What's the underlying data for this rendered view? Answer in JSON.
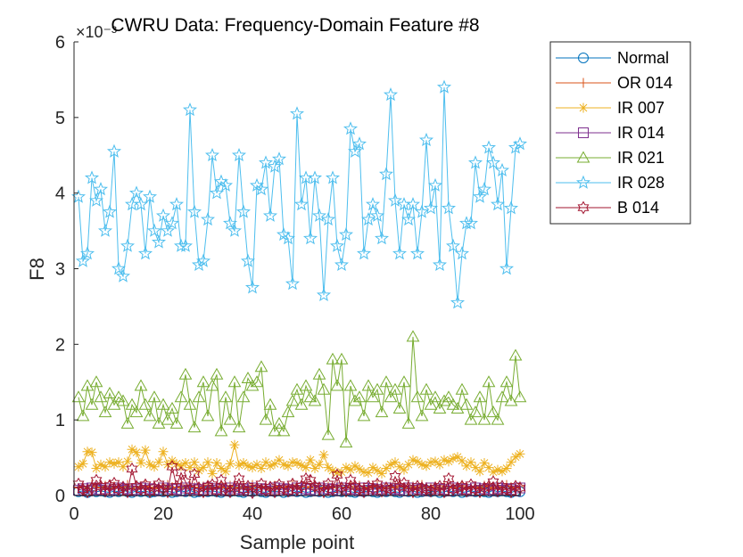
{
  "chart_data": {
    "type": "line",
    "title": "CWRU Data: Frequency-Domain Feature #8",
    "xlabel": "Sample point",
    "ylabel": "F8",
    "y_exponent_label": "×10⁻³",
    "xlim": [
      0,
      100
    ],
    "ylim": [
      0,
      6
    ],
    "x_ticks": [
      "0",
      "20",
      "40",
      "60",
      "80",
      "100"
    ],
    "y_ticks": [
      "0",
      "1",
      "2",
      "3",
      "4",
      "5",
      "6"
    ],
    "grid": false,
    "legend_position": "outside-top-right",
    "x": [
      1,
      2,
      3,
      4,
      5,
      6,
      7,
      8,
      9,
      10,
      11,
      12,
      13,
      14,
      15,
      16,
      17,
      18,
      19,
      20,
      21,
      22,
      23,
      24,
      25,
      26,
      27,
      28,
      29,
      30,
      31,
      32,
      33,
      34,
      35,
      36,
      37,
      38,
      39,
      40,
      41,
      42,
      43,
      44,
      45,
      46,
      47,
      48,
      49,
      50,
      51,
      52,
      53,
      54,
      55,
      56,
      57,
      58,
      59,
      60,
      61,
      62,
      63,
      64,
      65,
      66,
      67,
      68,
      69,
      70,
      71,
      72,
      73,
      74,
      75,
      76,
      77,
      78,
      79,
      80,
      81,
      82,
      83,
      84,
      85,
      86,
      87,
      88,
      89,
      90,
      91,
      92,
      93,
      94,
      95,
      96,
      97,
      98,
      99,
      100
    ],
    "series": [
      {
        "name": "Normal",
        "color": "#0072BD",
        "marker": "circle",
        "values": [
          0.05,
          0.06,
          0.04,
          0.07,
          0.05,
          0.06,
          0.05,
          0.04,
          0.06,
          0.05,
          0.07,
          0.05,
          0.04,
          0.06,
          0.05,
          0.06,
          0.04,
          0.05,
          0.07,
          0.05,
          0.06,
          0.04,
          0.05,
          0.06,
          0.05,
          0.07,
          0.04,
          0.05,
          0.06,
          0.05,
          0.06,
          0.05,
          0.04,
          0.07,
          0.05,
          0.06,
          0.05,
          0.04,
          0.06,
          0.05,
          0.07,
          0.05,
          0.04,
          0.06,
          0.05,
          0.06,
          0.04,
          0.05,
          0.07,
          0.05,
          0.06,
          0.04,
          0.05,
          0.06,
          0.05,
          0.07,
          0.04,
          0.05,
          0.06,
          0.05,
          0.06,
          0.05,
          0.04,
          0.07,
          0.05,
          0.06,
          0.05,
          0.04,
          0.06,
          0.05,
          0.07,
          0.05,
          0.04,
          0.06,
          0.05,
          0.06,
          0.04,
          0.05,
          0.07,
          0.05,
          0.06,
          0.04,
          0.05,
          0.06,
          0.05,
          0.07,
          0.04,
          0.05,
          0.06,
          0.05,
          0.06,
          0.05,
          0.04,
          0.07,
          0.05,
          0.06,
          0.05,
          0.04,
          0.06,
          0.05
        ]
      },
      {
        "name": "OR 014",
        "color": "#D95319",
        "marker": "plus",
        "values": [
          0.1,
          0.12,
          0.09,
          0.14,
          0.11,
          0.1,
          0.13,
          0.08,
          0.12,
          0.1,
          0.11,
          0.14,
          0.09,
          0.12,
          0.1,
          0.13,
          0.11,
          0.09,
          0.12,
          0.1,
          0.14,
          0.11,
          0.1,
          0.12,
          0.09,
          0.13,
          0.11,
          0.1,
          0.12,
          0.14,
          0.09,
          0.11,
          0.12,
          0.1,
          0.13,
          0.11,
          0.09,
          0.12,
          0.1,
          0.14,
          0.11,
          0.1,
          0.12,
          0.09,
          0.13,
          0.11,
          0.1,
          0.12,
          0.14,
          0.09,
          0.11,
          0.12,
          0.1,
          0.13,
          0.11,
          0.09,
          0.12,
          0.1,
          0.14,
          0.11,
          0.1,
          0.12,
          0.09,
          0.13,
          0.11,
          0.1,
          0.12,
          0.14,
          0.09,
          0.11,
          0.12,
          0.1,
          0.13,
          0.11,
          0.09,
          0.12,
          0.1,
          0.14,
          0.11,
          0.1,
          0.12,
          0.09,
          0.13,
          0.11,
          0.1,
          0.12,
          0.14,
          0.09,
          0.11,
          0.12,
          0.1,
          0.13,
          0.11,
          0.09,
          0.12,
          0.1,
          0.14,
          0.11,
          0.1,
          0.12
        ]
      },
      {
        "name": "IR 007",
        "color": "#EDB120",
        "marker": "asterisk",
        "values": [
          0.38,
          0.42,
          0.58,
          0.57,
          0.36,
          0.41,
          0.38,
          0.44,
          0.42,
          0.44,
          0.38,
          0.45,
          0.61,
          0.57,
          0.43,
          0.6,
          0.41,
          0.38,
          0.44,
          0.58,
          0.41,
          0.46,
          0.42,
          0.39,
          0.43,
          0.37,
          0.44,
          0.33,
          0.37,
          0.44,
          0.29,
          0.43,
          0.36,
          0.32,
          0.42,
          0.67,
          0.4,
          0.43,
          0.39,
          0.37,
          0.41,
          0.36,
          0.44,
          0.39,
          0.42,
          0.47,
          0.41,
          0.39,
          0.44,
          0.43,
          0.4,
          0.37,
          0.47,
          0.36,
          0.41,
          0.54,
          0.37,
          0.33,
          0.3,
          0.31,
          0.37,
          0.34,
          0.39,
          0.35,
          0.31,
          0.3,
          0.37,
          0.33,
          0.29,
          0.36,
          0.41,
          0.44,
          0.38,
          0.34,
          0.41,
          0.47,
          0.45,
          0.41,
          0.39,
          0.44,
          0.45,
          0.41,
          0.47,
          0.45,
          0.49,
          0.51,
          0.46,
          0.39,
          0.44,
          0.37,
          0.32,
          0.43,
          0.37,
          0.31,
          0.34,
          0.32,
          0.36,
          0.44,
          0.51,
          0.55
        ]
      },
      {
        "name": "IR 014",
        "color": "#7E2F8E",
        "marker": "square",
        "values": [
          0.07,
          0.09,
          0.06,
          0.1,
          0.08,
          0.07,
          0.09,
          0.06,
          0.08,
          0.1,
          0.07,
          0.09,
          0.06,
          0.08,
          0.1,
          0.07,
          0.09,
          0.08,
          0.06,
          0.1,
          0.07,
          0.09,
          0.08,
          0.06,
          0.1,
          0.07,
          0.09,
          0.08,
          0.06,
          0.1,
          0.07,
          0.09,
          0.08,
          0.06,
          0.1,
          0.07,
          0.09,
          0.08,
          0.06,
          0.1,
          0.07,
          0.09,
          0.08,
          0.06,
          0.1,
          0.07,
          0.09,
          0.08,
          0.06,
          0.1,
          0.07,
          0.09,
          0.08,
          0.06,
          0.1,
          0.07,
          0.09,
          0.08,
          0.06,
          0.1,
          0.07,
          0.09,
          0.08,
          0.06,
          0.1,
          0.07,
          0.09,
          0.08,
          0.06,
          0.1,
          0.07,
          0.09,
          0.08,
          0.06,
          0.1,
          0.07,
          0.09,
          0.08,
          0.06,
          0.1,
          0.07,
          0.09,
          0.08,
          0.06,
          0.1,
          0.07,
          0.09,
          0.08,
          0.06,
          0.1,
          0.07,
          0.09,
          0.08,
          0.06,
          0.1,
          0.07,
          0.09,
          0.08,
          0.06,
          0.1
        ]
      },
      {
        "name": "IR 021",
        "color": "#77AC30",
        "marker": "triangle",
        "values": [
          1.3,
          1.05,
          1.45,
          1.2,
          1.5,
          1.3,
          1.1,
          1.35,
          1.2,
          1.3,
          1.25,
          0.95,
          1.2,
          1.1,
          1.45,
          1.2,
          1.05,
          1.3,
          0.95,
          1.2,
          1.0,
          1.15,
          0.95,
          1.3,
          1.6,
          1.2,
          0.9,
          1.3,
          1.5,
          1.05,
          1.45,
          1.6,
          0.85,
          1.3,
          1.0,
          1.5,
          0.9,
          1.3,
          1.55,
          1.45,
          1.5,
          1.7,
          1.0,
          1.2,
          0.85,
          0.95,
          0.85,
          1.1,
          1.25,
          1.4,
          1.2,
          1.45,
          1.3,
          1.25,
          1.6,
          1.4,
          0.8,
          1.8,
          1.45,
          1.8,
          0.7,
          1.45,
          1.25,
          1.3,
          1.05,
          1.45,
          1.3,
          1.4,
          1.1,
          1.5,
          1.3,
          1.4,
          1.15,
          1.5,
          0.95,
          2.1,
          1.3,
          1.05,
          1.4,
          1.2,
          1.3,
          1.15,
          1.25,
          1.3,
          1.2,
          1.15,
          1.4,
          1.2,
          1.0,
          1.1,
          1.3,
          1.0,
          1.5,
          1.1,
          1.0,
          1.3,
          1.5,
          1.25,
          1.85,
          1.3
        ]
      },
      {
        "name": "IR 028",
        "color": "#4DBEEE",
        "marker": "pentagram",
        "values": [
          3.95,
          3.1,
          3.2,
          4.2,
          3.9,
          4.05,
          3.5,
          3.75,
          4.55,
          3.0,
          2.9,
          3.3,
          3.85,
          4.0,
          3.85,
          3.2,
          3.95,
          3.5,
          3.35,
          3.7,
          3.5,
          3.6,
          3.85,
          3.3,
          3.3,
          5.1,
          3.75,
          3.05,
          3.1,
          3.65,
          4.5,
          4.0,
          4.15,
          4.1,
          3.6,
          3.5,
          4.5,
          3.75,
          3.1,
          2.75,
          4.1,
          4.05,
          4.4,
          3.7,
          4.35,
          4.45,
          3.45,
          3.4,
          2.8,
          5.05,
          3.85,
          4.2,
          3.4,
          4.2,
          3.7,
          2.65,
          3.65,
          4.2,
          3.3,
          3.05,
          3.45,
          4.85,
          4.55,
          4.65,
          3.2,
          3.65,
          3.85,
          3.7,
          3.4,
          4.25,
          5.3,
          3.9,
          3.2,
          3.85,
          3.65,
          3.85,
          3.2,
          3.75,
          4.7,
          3.8,
          4.1,
          3.05,
          5.4,
          3.8,
          3.3,
          2.55,
          3.2,
          3.6,
          3.6,
          4.4,
          3.95,
          4.05,
          4.6,
          4.4,
          3.85,
          4.3,
          3.0,
          3.8,
          4.6,
          4.65
        ]
      },
      {
        "name": "B 014",
        "color": "#A2142F",
        "marker": "hexagram",
        "values": [
          0.15,
          0.08,
          0.05,
          0.1,
          0.2,
          0.12,
          0.06,
          0.13,
          0.16,
          0.08,
          0.11,
          0.05,
          0.35,
          0.12,
          0.08,
          0.14,
          0.05,
          0.1,
          0.15,
          0.09,
          0.05,
          0.38,
          0.12,
          0.3,
          0.18,
          0.07,
          0.28,
          0.1,
          0.05,
          0.12,
          0.14,
          0.06,
          0.2,
          0.09,
          0.05,
          0.1,
          0.22,
          0.08,
          0.12,
          0.04,
          0.09,
          0.15,
          0.07,
          0.11,
          0.05,
          0.14,
          0.09,
          0.06,
          0.15,
          0.08,
          0.12,
          0.22,
          0.2,
          0.12,
          0.1,
          0.05,
          0.15,
          0.08,
          0.27,
          0.1,
          0.06,
          0.2,
          0.12,
          0.08,
          0.05,
          0.12,
          0.09,
          0.15,
          0.06,
          0.1,
          0.08,
          0.25,
          0.12,
          0.16,
          0.1,
          0.05,
          0.12,
          0.1,
          0.08,
          0.06,
          0.1,
          0.12,
          0.05,
          0.22,
          0.08,
          0.1,
          0.12,
          0.06,
          0.14,
          0.08,
          0.05,
          0.1,
          0.12,
          0.18,
          0.06,
          0.12,
          0.08,
          0.05,
          0.12,
          0.1
        ]
      }
    ]
  }
}
